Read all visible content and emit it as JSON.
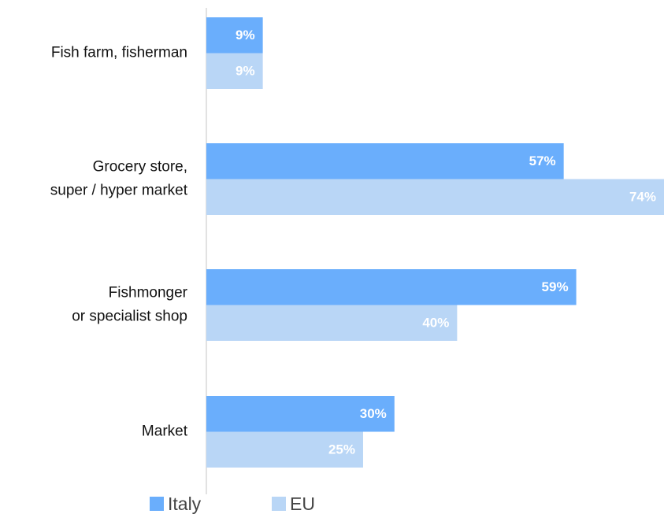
{
  "chart_data": {
    "type": "hbar",
    "categories": [
      "Fish farm, fisherman",
      "Grocery store,\nsuper / hyper market",
      "Fishmonger\nor specialist shop",
      "Market"
    ],
    "series": [
      {
        "name": "Italy",
        "color": "#6aaefc",
        "values": [
          9,
          57,
          59,
          30
        ],
        "value_labels": [
          "9%",
          "57%",
          "59%",
          "30%"
        ]
      },
      {
        "name": "EU",
        "color": "#b9d6f6",
        "values": [
          9,
          74,
          40,
          25
        ],
        "value_labels": [
          "9%",
          "74%",
          "40%",
          "25%"
        ]
      }
    ],
    "xlim": [
      0,
      73
    ],
    "legend": "bottom"
  }
}
